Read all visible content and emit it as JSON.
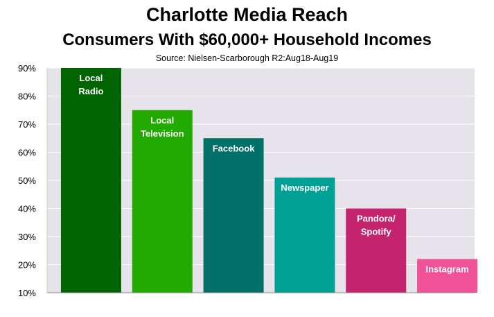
{
  "chart_data": {
    "type": "bar",
    "title": "Charlotte Media Reach",
    "subtitle": "Consumers With $60,000+ Household Incomes",
    "source": "Source: Nielsen-Scarborough R2:Aug18-Aug19",
    "categories": [
      [
        "Local",
        "Radio"
      ],
      [
        "Local",
        "Television"
      ],
      [
        "Facebook"
      ],
      [
        "Newspaper"
      ],
      [
        "Pandora/",
        "Spotify"
      ],
      [
        "Instagram"
      ]
    ],
    "values": [
      90,
      75,
      65,
      51,
      40,
      22
    ],
    "colors": [
      "#006400",
      "#22aa00",
      "#007068",
      "#00a095",
      "#c4236e",
      "#ef5297"
    ],
    "ylim": [
      10,
      90
    ],
    "yticks": [
      "10%",
      "20%",
      "30%",
      "40%",
      "50%",
      "60%",
      "70%",
      "80%",
      "90%"
    ],
    "xlabel": "",
    "ylabel": "",
    "grid": true,
    "plot_background": "#e6e4ea"
  }
}
